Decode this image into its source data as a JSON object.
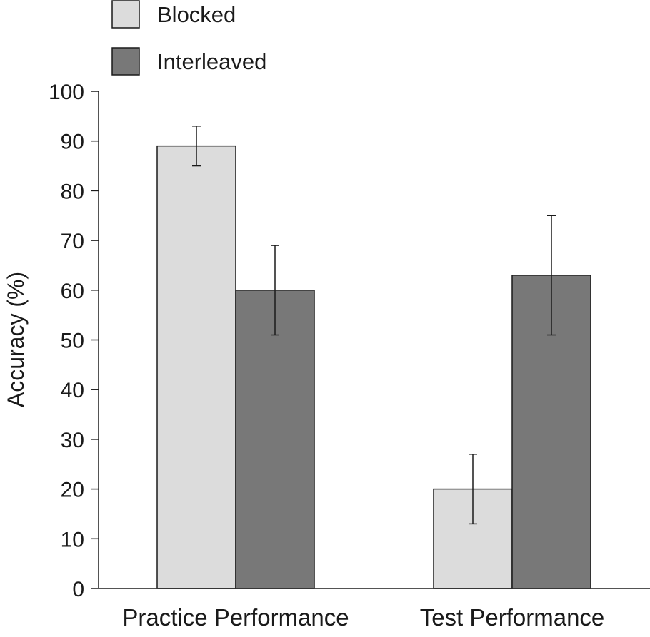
{
  "chart_data": {
    "type": "bar",
    "title": "",
    "xlabel": "",
    "ylabel": "Accuracy (%)",
    "ylim": [
      0,
      100
    ],
    "yticks": [
      0,
      10,
      20,
      30,
      40,
      50,
      60,
      70,
      80,
      90,
      100
    ],
    "categories": [
      "Practice Performance",
      "Test Performance"
    ],
    "series": [
      {
        "name": "Blocked",
        "color": "#dcdcdc",
        "values": [
          89,
          20
        ],
        "error_low": [
          85,
          13
        ],
        "error_high": [
          93,
          27
        ]
      },
      {
        "name": "Interleaved",
        "color": "#787878",
        "values": [
          60,
          63
        ],
        "error_low": [
          51,
          51
        ],
        "error_high": [
          69,
          75
        ]
      }
    ],
    "legend": {
      "position": "top-left",
      "entries": [
        "Blocked",
        "Interleaved"
      ]
    },
    "grid": false
  }
}
